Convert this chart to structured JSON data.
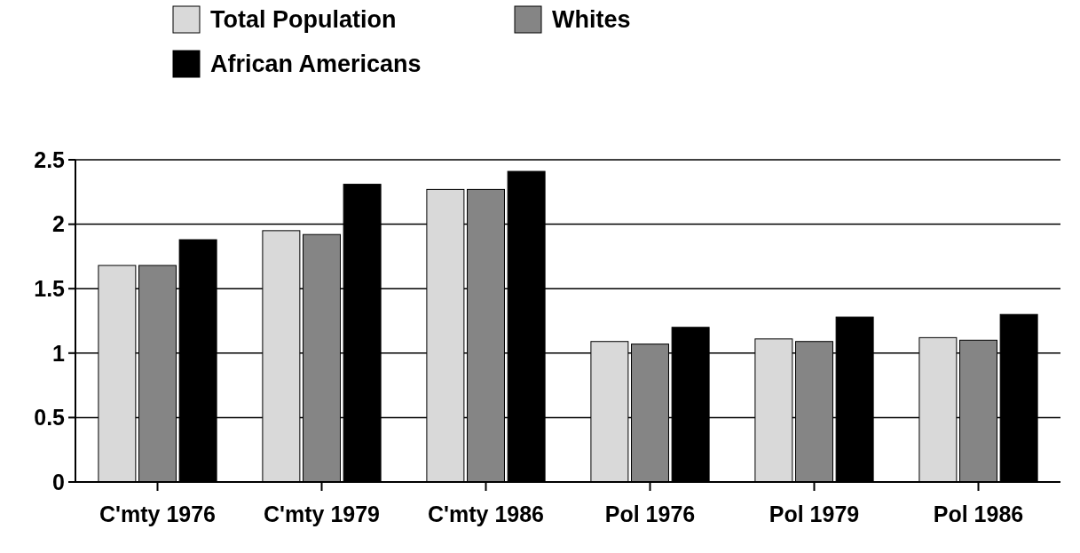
{
  "chart_data": {
    "type": "bar",
    "categories": [
      "C'mty 1976",
      "C'mty 1979",
      "C'mty 1986",
      "Pol 1976",
      "Pol 1979",
      "Pol 1986"
    ],
    "series": [
      {
        "name": "Total Population",
        "color": "#d9d9d9",
        "values": [
          1.68,
          1.95,
          2.27,
          1.09,
          1.11,
          1.12
        ]
      },
      {
        "name": "Whites",
        "color": "#858585",
        "values": [
          1.68,
          1.92,
          2.27,
          1.07,
          1.09,
          1.1
        ]
      },
      {
        "name": "African Americans",
        "color": "#000000",
        "values": [
          1.88,
          2.31,
          2.41,
          1.2,
          1.28,
          1.3
        ]
      }
    ],
    "ylim": [
      0,
      2.5
    ],
    "yticks": [
      0,
      0.5,
      1,
      1.5,
      2,
      2.5
    ],
    "grid": "y",
    "legend": "top left"
  }
}
